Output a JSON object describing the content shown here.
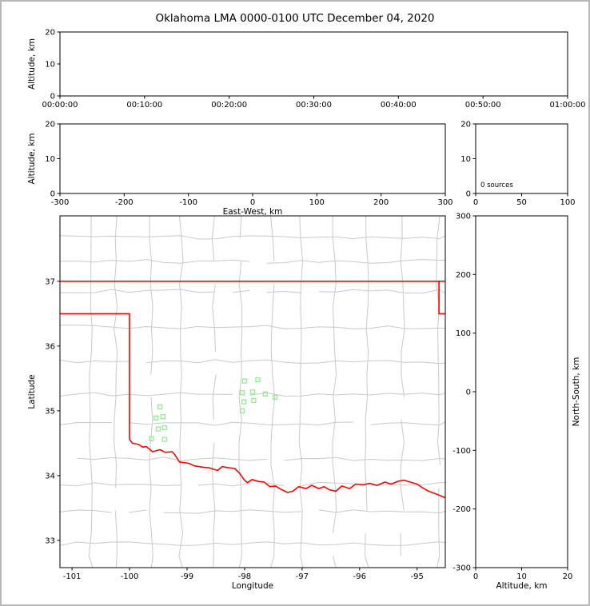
{
  "title": "Oklahoma LMA 0000-0100 UTC December 04, 2020",
  "colors": {
    "background": "#ffffff",
    "frame": "#000000",
    "outer_border": "#b8b8b8",
    "county_lines": "#c9c9c9",
    "state_border": "#ff0000",
    "station_marker": "#90ee90"
  },
  "panels": {
    "time_height": {
      "ylabel": "Altitude, km",
      "yticks": [
        0,
        10,
        20
      ],
      "xtick_labels": [
        "00:00:00",
        "00:10:00",
        "00:20:00",
        "00:30:00",
        "00:40:00",
        "00:50:00",
        "01:00:00"
      ],
      "ylim": [
        0,
        20
      ]
    },
    "ew_height": {
      "xlabel": "East-West, km",
      "ylabel": "Altitude, km",
      "xticks": [
        -300,
        -200,
        -100,
        0,
        100,
        200,
        300
      ],
      "yticks": [
        0,
        10,
        20
      ],
      "xlim": [
        -300,
        300
      ],
      "ylim": [
        0,
        20
      ]
    },
    "histogram": {
      "annotation": "0 sources",
      "xticks": [
        0,
        50,
        100
      ],
      "yticks": [
        0,
        10,
        20
      ],
      "xlim": [
        0,
        100
      ],
      "ylim": [
        0,
        20
      ]
    },
    "map": {
      "xlabel": "Longitude",
      "ylabel": "Latitude",
      "xticks": [
        -101,
        -100,
        -99,
        -98,
        -97,
        -96,
        -95
      ],
      "yticks": [
        33,
        34,
        35,
        36,
        37
      ],
      "xlim": [
        -101.21,
        -94.51
      ],
      "ylim": [
        32.58,
        38.01
      ]
    },
    "ns_height": {
      "xlabel": "Altitude, km",
      "ylabel": "North-South, km",
      "xticks": [
        0,
        10,
        20
      ],
      "yticks": [
        300,
        200,
        100,
        0,
        -100,
        -200,
        -300
      ],
      "xlim": [
        0,
        20
      ],
      "ylim": [
        -300,
        300
      ]
    }
  },
  "chart_data": [
    {
      "type": "scatter",
      "name": "time-height",
      "ylabel": "Altitude, km",
      "xtick_labels": [
        "00:00:00",
        "00:10:00",
        "00:20:00",
        "00:30:00",
        "00:40:00",
        "00:50:00",
        "01:00:00"
      ],
      "ylim": [
        0,
        20
      ],
      "x": [],
      "y": [],
      "note": "no lightning sources plotted"
    },
    {
      "type": "scatter",
      "name": "ew-height",
      "xlabel": "East-West, km",
      "ylabel": "Altitude, km",
      "xlim": [
        -300,
        300
      ],
      "ylim": [
        0,
        20
      ],
      "x": [],
      "y": []
    },
    {
      "type": "histogram",
      "name": "source-count-histogram",
      "annotation": "0 sources",
      "xlim": [
        0,
        100
      ],
      "ylim": [
        0,
        20
      ],
      "values": []
    },
    {
      "type": "scatter",
      "name": "plan-view-map",
      "xlabel": "Longitude",
      "ylabel": "Latitude",
      "xlim": [
        -101.21,
        -94.51
      ],
      "ylim": [
        32.58,
        38.01
      ],
      "series": [
        {
          "name": "lma-stations",
          "marker": "open-square",
          "color": "#90ee90",
          "x": [
            -98.0,
            -97.77,
            -98.04,
            -97.86,
            -97.64,
            -98.01,
            -97.84,
            -98.04,
            -97.47,
            -99.47,
            -99.42,
            -99.54,
            -99.39,
            -99.5,
            -99.62,
            -99.39
          ],
          "y": [
            35.46,
            35.48,
            35.28,
            35.29,
            35.26,
            35.14,
            35.16,
            35.0,
            35.21,
            35.06,
            34.91,
            34.89,
            34.74,
            34.72,
            34.57,
            34.56
          ]
        }
      ]
    },
    {
      "type": "scatter",
      "name": "ns-height",
      "xlabel": "Altitude, km",
      "ylabel": "North-South, km",
      "xlim": [
        0,
        20
      ],
      "ylim": [
        -300,
        300
      ],
      "x": [],
      "y": []
    }
  ],
  "map_features": {
    "state_border_color": "#ff0000",
    "north_border_lat": 37.0,
    "panhandle_south_lat": 36.5,
    "west_border_lon": -100.0,
    "east_border_lon": -94.62,
    "red_river_boundary": [
      [
        -100.0,
        34.56
      ],
      [
        -99.95,
        34.5
      ],
      [
        -99.84,
        34.48
      ],
      [
        -99.77,
        34.44
      ],
      [
        -99.71,
        34.45
      ],
      [
        -99.6,
        34.37
      ],
      [
        -99.47,
        34.4
      ],
      [
        -99.38,
        34.36
      ],
      [
        -99.26,
        34.37
      ],
      [
        -99.21,
        34.32
      ],
      [
        -99.13,
        34.21
      ],
      [
        -98.97,
        34.19
      ],
      [
        -98.87,
        34.15
      ],
      [
        -98.72,
        34.13
      ],
      [
        -98.61,
        34.12
      ],
      [
        -98.47,
        34.08
      ],
      [
        -98.39,
        34.14
      ],
      [
        -98.27,
        34.12
      ],
      [
        -98.17,
        34.11
      ],
      [
        -98.09,
        34.04
      ],
      [
        -98.01,
        33.94
      ],
      [
        -97.95,
        33.89
      ],
      [
        -97.87,
        33.94
      ],
      [
        -97.76,
        33.91
      ],
      [
        -97.66,
        33.9
      ],
      [
        -97.56,
        33.83
      ],
      [
        -97.46,
        33.84
      ],
      [
        -97.37,
        33.79
      ],
      [
        -97.25,
        33.74
      ],
      [
        -97.16,
        33.76
      ],
      [
        -97.06,
        33.83
      ],
      [
        -96.93,
        33.8
      ],
      [
        -96.83,
        33.85
      ],
      [
        -96.71,
        33.8
      ],
      [
        -96.62,
        33.83
      ],
      [
        -96.52,
        33.78
      ],
      [
        -96.41,
        33.76
      ],
      [
        -96.31,
        33.84
      ],
      [
        -96.17,
        33.8
      ],
      [
        -96.07,
        33.87
      ],
      [
        -95.94,
        33.86
      ],
      [
        -95.82,
        33.88
      ],
      [
        -95.7,
        33.85
      ],
      [
        -95.56,
        33.9
      ],
      [
        -95.45,
        33.87
      ],
      [
        -95.34,
        33.91
      ],
      [
        -95.23,
        33.93
      ],
      [
        -95.12,
        33.9
      ],
      [
        -95.0,
        33.87
      ],
      [
        -94.9,
        33.81
      ],
      [
        -94.8,
        33.76
      ],
      [
        -94.68,
        33.72
      ],
      [
        -94.51,
        33.66
      ]
    ]
  }
}
